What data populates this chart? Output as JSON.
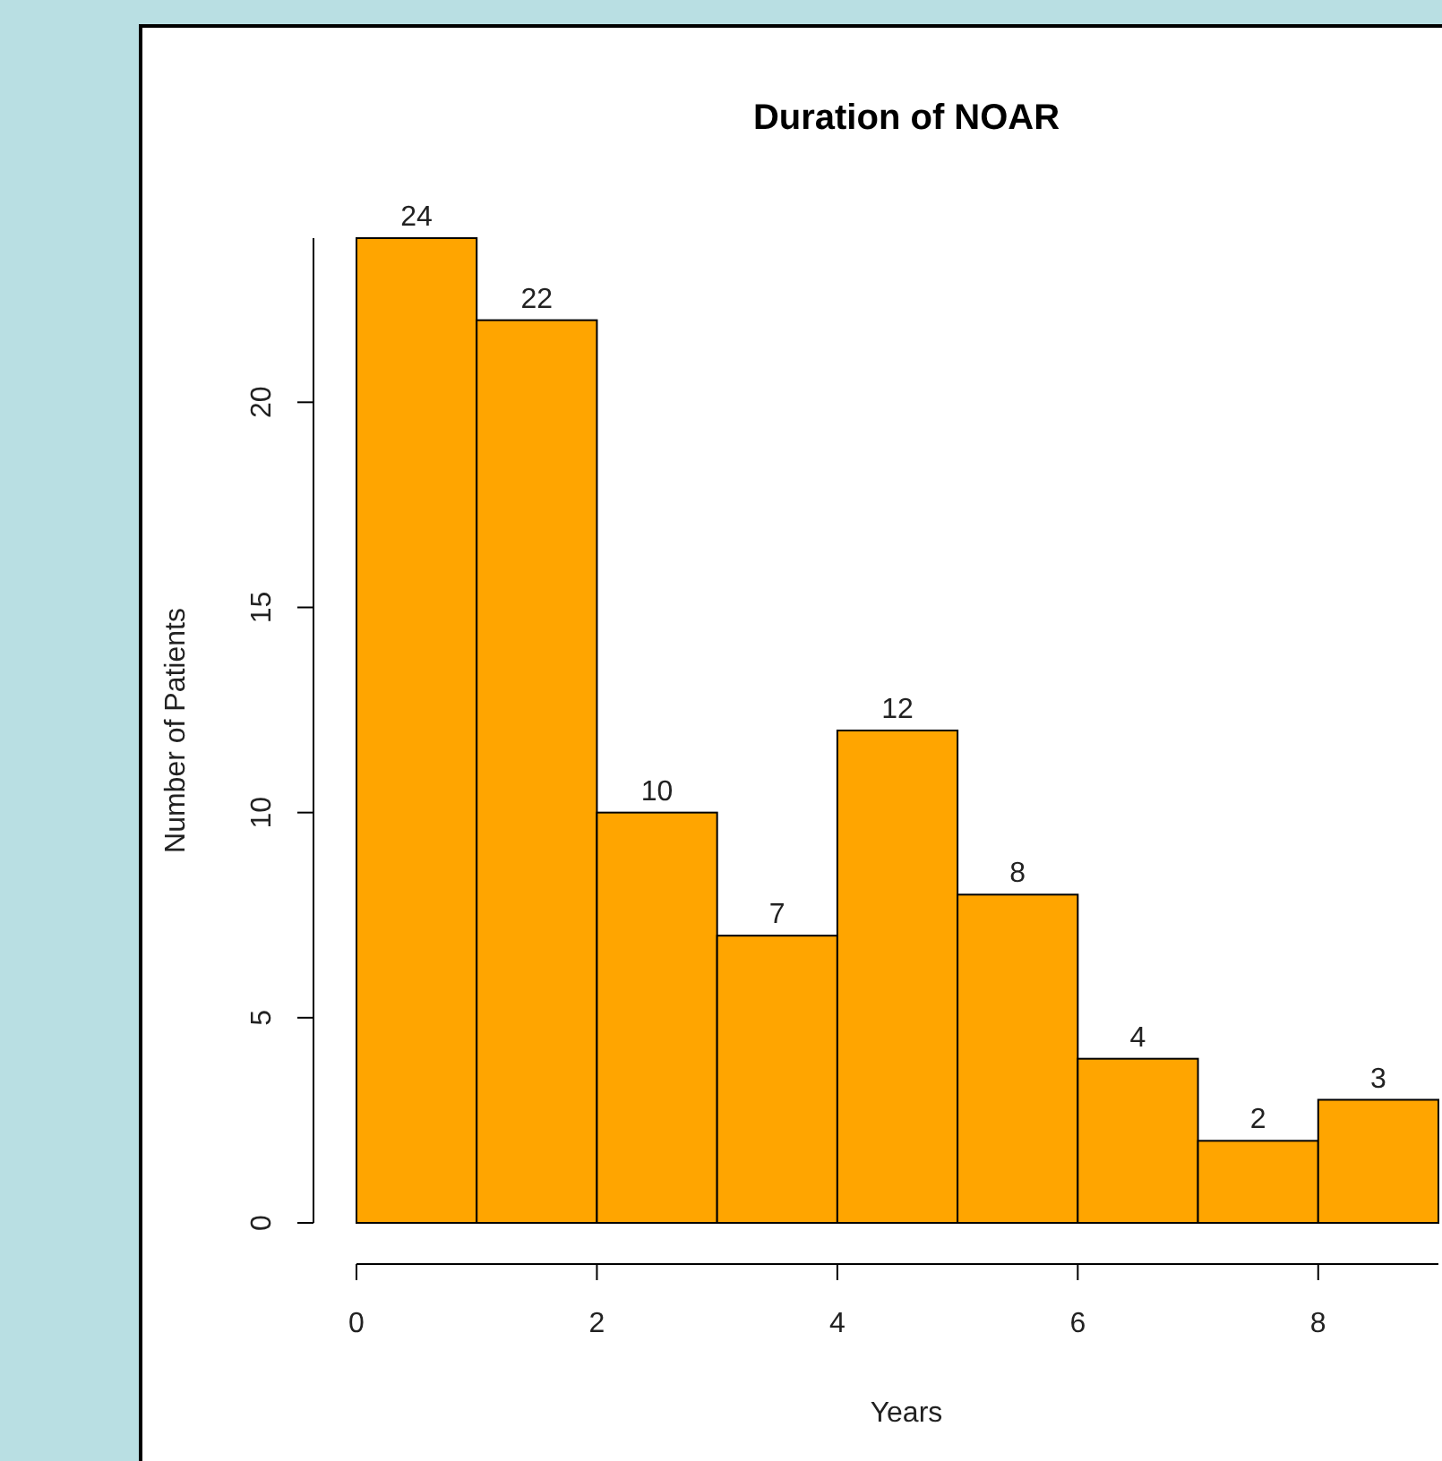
{
  "chart_data": {
    "type": "histogram",
    "title": "Duration of NOAR",
    "xlabel": "Years",
    "ylabel": "Number of Patients",
    "bins": [
      0,
      1,
      2,
      3,
      4,
      5,
      6,
      7,
      8,
      9
    ],
    "values": [
      24,
      22,
      10,
      7,
      12,
      8,
      4,
      2,
      3
    ],
    "color": "#ffa500",
    "data_labels": true,
    "grid": false,
    "xlim": [
      0,
      9
    ],
    "ylim": [
      0,
      24
    ],
    "xticks": [
      0,
      2,
      4,
      6,
      8
    ],
    "yticks": [
      0,
      5,
      10,
      15,
      20
    ]
  }
}
